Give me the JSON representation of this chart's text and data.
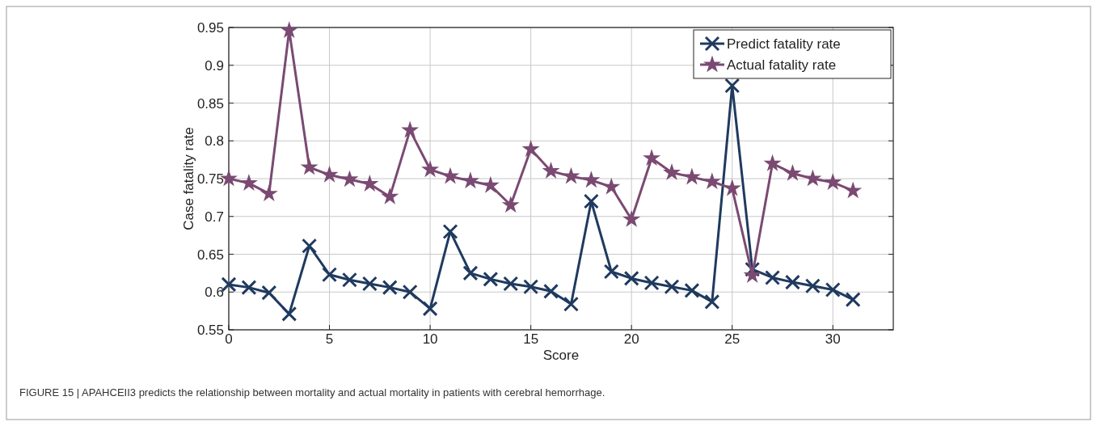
{
  "chart_data": {
    "type": "line",
    "xlabel": "Score",
    "ylabel": "Case fatality rate",
    "x": [
      0,
      1,
      2,
      3,
      4,
      5,
      6,
      7,
      8,
      9,
      10,
      11,
      12,
      13,
      14,
      15,
      16,
      17,
      18,
      19,
      20,
      21,
      22,
      23,
      24,
      25,
      26,
      27,
      28,
      29,
      30,
      31
    ],
    "series": [
      {
        "name": "Predict fatality rate",
        "color": "#1f3a5f",
        "marker": "cross",
        "values": [
          0.61,
          0.606,
          0.599,
          0.571,
          0.661,
          0.623,
          0.616,
          0.611,
          0.606,
          0.6,
          0.578,
          0.68,
          0.625,
          0.617,
          0.611,
          0.607,
          0.601,
          0.584,
          0.72,
          0.627,
          0.618,
          0.612,
          0.607,
          0.602,
          0.587,
          0.873,
          0.63,
          0.619,
          0.613,
          0.608,
          0.603,
          0.59
        ]
      },
      {
        "name": "Actual fatality rate",
        "color": "#7a4a72",
        "marker": "star",
        "values": [
          0.75,
          0.744,
          0.73,
          0.946,
          0.765,
          0.755,
          0.749,
          0.743,
          0.726,
          0.814,
          0.762,
          0.753,
          0.747,
          0.741,
          0.715,
          0.789,
          0.76,
          0.753,
          0.748,
          0.739,
          0.696,
          0.777,
          0.758,
          0.752,
          0.746,
          0.737,
          0.622,
          0.77,
          0.757,
          0.75,
          0.745,
          0.734
        ]
      }
    ],
    "xlim": [
      0,
      33
    ],
    "xticks": [
      0,
      5,
      10,
      15,
      20,
      25,
      30
    ],
    "ylim": [
      0.55,
      0.95
    ],
    "yticks": [
      0.55,
      {
        "value": 0.6,
        "label": "0.6"
      },
      0.65,
      {
        "value": 0.7,
        "label": "0.7"
      },
      0.75,
      {
        "value": 0.8,
        "label": "0.8"
      },
      0.85,
      {
        "value": 0.9,
        "label": "0.9"
      },
      0.95
    ],
    "grid": true,
    "legend": "top right",
    "line_style": "solid",
    "annotations": [
      "FIGURE 15 | APAHCEII3 predicts the relationship between mortality and actual mortality in patients with cerebral hemorrhage."
    ]
  }
}
